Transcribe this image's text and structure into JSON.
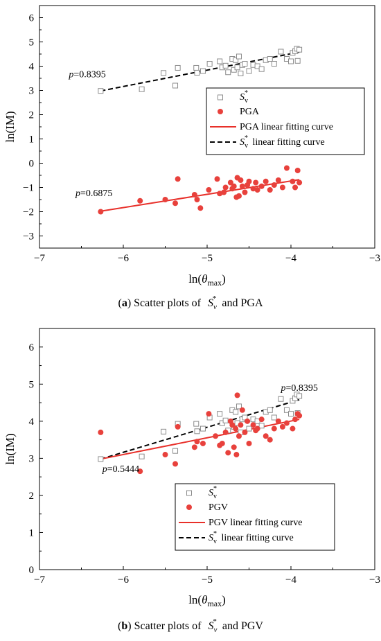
{
  "charts": [
    {
      "id": "a",
      "caption": {
        "label": "(a)",
        "text": "Scatter plots of",
        "symbol_base": "S",
        "symbol_sub": "v",
        "symbol_sup": "*",
        "tail": "and PGA"
      },
      "chart_data": {
        "type": "scatter",
        "xlabel": {
          "base": "ln(",
          "theta": "θ",
          "sub": "max",
          "close": ")"
        },
        "ylabel": "ln(IM)",
        "xlim": [
          -7,
          -3
        ],
        "ylim": [
          -3.5,
          6.5
        ],
        "xticks": [
          "-7",
          "-6",
          "-5",
          "-4",
          "-3"
        ],
        "yticks": [
          "-3",
          "-2",
          "-1",
          "0",
          "1",
          "2",
          "3",
          "4",
          "5",
          "6"
        ],
        "series": [
          {
            "name": "Sv*",
            "marker": "open-square",
            "color": "#8c8c8c",
            "points": [
              [
                -6.27,
                2.98
              ],
              [
                -5.78,
                3.05
              ],
              [
                -5.52,
                3.72
              ],
              [
                -5.38,
                3.2
              ],
              [
                -5.35,
                3.93
              ],
              [
                -5.13,
                3.93
              ],
              [
                -5.12,
                3.73
              ],
              [
                -5.05,
                3.8
              ],
              [
                -4.97,
                4.1
              ],
              [
                -4.85,
                4.2
              ],
              [
                -4.82,
                3.95
              ],
              [
                -4.78,
                4.02
              ],
              [
                -4.75,
                3.75
              ],
              [
                -4.7,
                4.3
              ],
              [
                -4.68,
                3.85
              ],
              [
                -4.66,
                4.25
              ],
              [
                -4.64,
                3.95
              ],
              [
                -4.62,
                4.4
              ],
              [
                -4.6,
                3.7
              ],
              [
                -4.58,
                4.05
              ],
              [
                -4.55,
                4.1
              ],
              [
                -4.5,
                3.8
              ],
              [
                -4.45,
                4.05
              ],
              [
                -4.4,
                4.0
              ],
              [
                -4.35,
                3.88
              ],
              [
                -4.3,
                4.25
              ],
              [
                -4.25,
                4.3
              ],
              [
                -4.2,
                4.1
              ],
              [
                -4.12,
                4.6
              ],
              [
                -4.05,
                4.3
              ],
              [
                -4.0,
                4.2
              ],
              [
                -3.98,
                4.55
              ],
              [
                -3.95,
                4.62
              ],
              [
                -3.93,
                4.72
              ],
              [
                -3.9,
                4.68
              ],
              [
                -3.92,
                4.22
              ]
            ]
          },
          {
            "name": "PGA",
            "marker": "filled-circle",
            "color": "#e8413c",
            "points": [
              [
                -6.27,
                -2.0
              ],
              [
                -5.8,
                -1.55
              ],
              [
                -5.5,
                -1.5
              ],
              [
                -5.38,
                -1.65
              ],
              [
                -5.35,
                -0.65
              ],
              [
                -5.15,
                -1.3
              ],
              [
                -5.12,
                -1.5
              ],
              [
                -5.08,
                -1.85
              ],
              [
                -4.98,
                -1.1
              ],
              [
                -4.88,
                -0.65
              ],
              [
                -4.85,
                -1.25
              ],
              [
                -4.8,
                -1.2
              ],
              [
                -4.78,
                -1.0
              ],
              [
                -4.72,
                -0.8
              ],
              [
                -4.7,
                -1.05
              ],
              [
                -4.68,
                -0.95
              ],
              [
                -4.65,
                -1.4
              ],
              [
                -4.64,
                -0.6
              ],
              [
                -4.62,
                -1.35
              ],
              [
                -4.6,
                -0.7
              ],
              [
                -4.58,
                -0.95
              ],
              [
                -4.55,
                -1.2
              ],
              [
                -4.52,
                -0.9
              ],
              [
                -4.5,
                -0.75
              ],
              [
                -4.45,
                -1.05
              ],
              [
                -4.42,
                -0.8
              ],
              [
                -4.4,
                -1.1
              ],
              [
                -4.35,
                -0.95
              ],
              [
                -4.3,
                -0.75
              ],
              [
                -4.25,
                -1.1
              ],
              [
                -4.2,
                -0.9
              ],
              [
                -4.15,
                -0.7
              ],
              [
                -4.1,
                -1.0
              ],
              [
                -4.05,
                -0.2
              ],
              [
                -3.98,
                -0.75
              ],
              [
                -3.95,
                -1.0
              ],
              [
                -3.92,
                -0.3
              ],
              [
                -3.9,
                -0.8
              ]
            ]
          }
        ],
        "fits": [
          {
            "name": "Sv* linear fitting curve",
            "style": "dashed",
            "color": "#000000",
            "from": [
              -6.27,
              2.98
            ],
            "to": [
              -3.9,
              4.58
            ]
          },
          {
            "name": "PGA linear fitting curve",
            "style": "solid",
            "color": "#e8302a",
            "from": [
              -6.27,
              -1.98
            ],
            "to": [
              -3.9,
              -0.68
            ]
          }
        ],
        "annotations": [
          {
            "prefix": "p",
            "value": "=0.8395",
            "at": [
              -6.65,
              3.55
            ]
          },
          {
            "prefix": "p",
            "value": "=0.6875",
            "at": [
              -6.57,
              -1.35
            ]
          }
        ],
        "legend": {
          "placement": "right",
          "order": [
            "Sv*",
            "PGA",
            "PGA linear fitting curve",
            "Sv* linear fitting curve"
          ],
          "labels": {
            "sv": {
              "base": "S",
              "sub": "v",
              "sup": "*"
            },
            "pga": "PGA",
            "pga_fit": "PGA linear fitting curve",
            "sv_fit_tail": "linear fitting curve"
          }
        }
      }
    },
    {
      "id": "b",
      "caption": {
        "label": "(b)",
        "text": "Scatter plots of",
        "symbol_base": "S",
        "symbol_sub": "v",
        "symbol_sup": "*",
        "tail": "and PGV"
      },
      "chart_data": {
        "type": "scatter",
        "xlabel": {
          "base": "ln(",
          "theta": "θ",
          "sub": "max",
          "close": ")"
        },
        "ylabel": "ln(IM)",
        "xlim": [
          -7,
          -3
        ],
        "ylim": [
          0,
          6.5
        ],
        "xticks": [
          "-7",
          "-6",
          "-5",
          "-4",
          "-3"
        ],
        "yticks": [
          "0",
          "1",
          "2",
          "3",
          "4",
          "5",
          "6"
        ],
        "series": [
          {
            "name": "Sv*",
            "marker": "open-square",
            "color": "#8c8c8c",
            "points": [
              [
                -6.27,
                2.98
              ],
              [
                -5.78,
                3.05
              ],
              [
                -5.52,
                3.72
              ],
              [
                -5.38,
                3.2
              ],
              [
                -5.35,
                3.93
              ],
              [
                -5.13,
                3.93
              ],
              [
                -5.12,
                3.73
              ],
              [
                -5.05,
                3.8
              ],
              [
                -4.97,
                4.1
              ],
              [
                -4.85,
                4.2
              ],
              [
                -4.82,
                3.95
              ],
              [
                -4.78,
                4.02
              ],
              [
                -4.75,
                3.75
              ],
              [
                -4.7,
                4.3
              ],
              [
                -4.68,
                3.85
              ],
              [
                -4.66,
                4.25
              ],
              [
                -4.64,
                3.95
              ],
              [
                -4.62,
                4.4
              ],
              [
                -4.6,
                3.7
              ],
              [
                -4.58,
                4.05
              ],
              [
                -4.55,
                4.1
              ],
              [
                -4.5,
                3.8
              ],
              [
                -4.45,
                4.05
              ],
              [
                -4.4,
                4.0
              ],
              [
                -4.35,
                3.88
              ],
              [
                -4.3,
                4.25
              ],
              [
                -4.25,
                4.3
              ],
              [
                -4.2,
                4.1
              ],
              [
                -4.12,
                4.6
              ],
              [
                -4.05,
                4.3
              ],
              [
                -4.0,
                4.2
              ],
              [
                -3.98,
                4.55
              ],
              [
                -3.95,
                4.62
              ],
              [
                -3.93,
                4.72
              ],
              [
                -3.9,
                4.68
              ],
              [
                -3.92,
                4.22
              ]
            ]
          },
          {
            "name": "PGV",
            "marker": "filled-circle",
            "color": "#e8413c",
            "points": [
              [
                -6.27,
                3.7
              ],
              [
                -5.8,
                2.65
              ],
              [
                -5.5,
                3.1
              ],
              [
                -5.38,
                2.85
              ],
              [
                -5.35,
                3.85
              ],
              [
                -5.15,
                3.3
              ],
              [
                -5.12,
                3.45
              ],
              [
                -5.05,
                3.4
              ],
              [
                -4.98,
                4.2
              ],
              [
                -4.9,
                3.6
              ],
              [
                -4.85,
                3.35
              ],
              [
                -4.82,
                3.4
              ],
              [
                -4.78,
                3.7
              ],
              [
                -4.75,
                3.15
              ],
              [
                -4.72,
                4.0
              ],
              [
                -4.7,
                3.9
              ],
              [
                -4.68,
                3.3
              ],
              [
                -4.66,
                3.8
              ],
              [
                -4.65,
                3.1
              ],
              [
                -4.64,
                4.7
              ],
              [
                -4.62,
                3.6
              ],
              [
                -4.6,
                3.9
              ],
              [
                -4.58,
                4.3
              ],
              [
                -4.55,
                3.7
              ],
              [
                -4.52,
                4.0
              ],
              [
                -4.5,
                3.4
              ],
              [
                -4.45,
                3.9
              ],
              [
                -4.42,
                3.75
              ],
              [
                -4.4,
                3.8
              ],
              [
                -4.35,
                4.05
              ],
              [
                -4.3,
                3.6
              ],
              [
                -4.25,
                3.5
              ],
              [
                -4.2,
                3.8
              ],
              [
                -4.15,
                4.0
              ],
              [
                -4.1,
                3.85
              ],
              [
                -4.05,
                3.95
              ],
              [
                -3.98,
                3.8
              ],
              [
                -3.95,
                4.05
              ],
              [
                -3.92,
                4.2
              ],
              [
                -3.9,
                4.15
              ]
            ]
          }
        ],
        "fits": [
          {
            "name": "Sv* linear fitting curve",
            "style": "dashed",
            "color": "#000000",
            "from": [
              -6.27,
              2.98
            ],
            "to": [
              -3.9,
              4.58
            ]
          },
          {
            "name": "PGV linear fitting curve",
            "style": "solid",
            "color": "#e8302a",
            "from": [
              -6.27,
              2.98
            ],
            "to": [
              -3.9,
              4.05
            ]
          }
        ],
        "annotations": [
          {
            "prefix": "p",
            "value": "=0.8395",
            "at": [
              -4.12,
              4.82
            ]
          },
          {
            "prefix": "p",
            "value": "=0.5444",
            "at": [
              -6.25,
              2.63
            ]
          }
        ],
        "legend": {
          "placement": "bottom-right",
          "order": [
            "Sv*",
            "PGV",
            "PGV linear fitting curve",
            "Sv* linear fitting curve"
          ],
          "labels": {
            "sv": {
              "base": "S",
              "sub": "v",
              "sup": "*"
            },
            "pga": "PGV",
            "pga_fit": "PGV linear fitting curve",
            "sv_fit_tail": "linear fitting curve"
          }
        }
      }
    }
  ]
}
